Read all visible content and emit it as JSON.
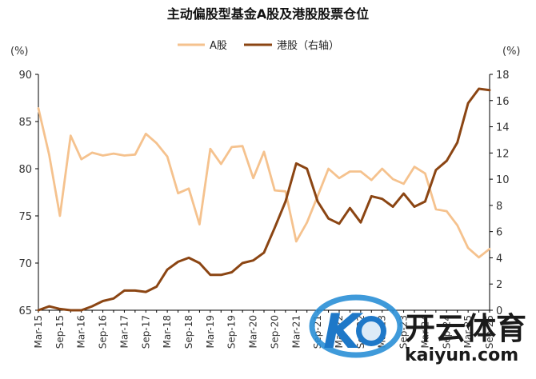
{
  "chart_data": {
    "type": "line",
    "title": "主动偏股型基金A股及港股股票仓位",
    "left_unit": "(%)",
    "right_unit": "(%)",
    "ylim_left": [
      65,
      90
    ],
    "yticks_left": [
      "65",
      "70",
      "75",
      "80",
      "85",
      "90"
    ],
    "ylim_right": [
      0,
      18
    ],
    "yticks_right": [
      "0",
      "2",
      "4",
      "6",
      "8",
      "10",
      "12",
      "14",
      "16",
      "18"
    ],
    "x_labels": [
      "Mar-15",
      "Sep-15",
      "Mar-16",
      "Sep-16",
      "Mar-17",
      "Sep-17",
      "Mar-18",
      "Sep-18",
      "Mar-19",
      "Sep-19",
      "Mar-20",
      "Sep-20",
      "Mar-21",
      "Sep-21",
      "Mar-22",
      "Sep-22",
      "Mar-23",
      "Sep-23",
      "Mar-24",
      "Sep-24",
      "Mar-25",
      "Sep-25"
    ],
    "legend_position": "top",
    "series": [
      {
        "name": "A股",
        "axis": "left",
        "color": "#F5C28E",
        "values": [
          86.4,
          81.5,
          75.0,
          83.5,
          81.0,
          81.7,
          81.4,
          81.6,
          81.4,
          81.5,
          83.7,
          82.7,
          81.3,
          77.4,
          77.9,
          74.1,
          82.1,
          80.5,
          82.3,
          82.4,
          79.0,
          81.8,
          77.7,
          77.6,
          72.3,
          74.3,
          77.1,
          80.0,
          79.0,
          79.7,
          79.7,
          78.8,
          80.0,
          78.9,
          78.4,
          80.2,
          79.5,
          75.7,
          75.5,
          74.0,
          71.6,
          70.6,
          71.5
        ]
      },
      {
        "name": "港股（右轴）",
        "axis": "right",
        "color": "#8B4513",
        "values": [
          0.0,
          0.3,
          0.1,
          0.0,
          0.0,
          0.3,
          0.7,
          0.9,
          1.5,
          1.5,
          1.4,
          1.8,
          3.1,
          3.7,
          4.0,
          3.6,
          2.7,
          2.7,
          2.9,
          3.6,
          3.8,
          4.4,
          6.3,
          8.3,
          11.2,
          10.8,
          8.3,
          7.0,
          6.6,
          7.8,
          6.7,
          8.7,
          8.5,
          7.9,
          8.9,
          7.9,
          8.3,
          10.7,
          11.4,
          12.8,
          15.8,
          16.9,
          16.8
        ]
      }
    ],
    "watermark": {
      "logo_text": "开云体育",
      "domain_text": "kaiyun.com",
      "logo_letter": "K"
    }
  }
}
